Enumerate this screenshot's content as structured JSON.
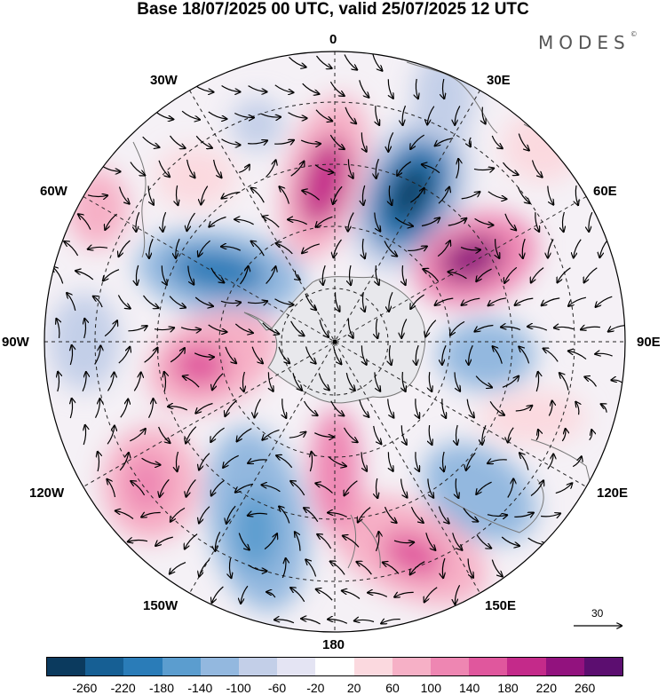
{
  "title": "Base 18/07/2025 00 UTC, valid 25/07/2025 12 UTC",
  "brand": "MODES",
  "brand_mark": "©",
  "map": {
    "projection": "south-polar-stereographic",
    "longitude_labels": {
      "top": "0",
      "top_right": "30E",
      "right_upper": "60E",
      "right": "90E",
      "right_lower": "120E",
      "bottom_right": "150E",
      "bottom": "180",
      "bottom_left": "150W",
      "left_lower": "120W",
      "left": "90W",
      "left_upper": "60W",
      "top_left": "30W"
    },
    "vector_reference": "30"
  },
  "colorbar": {
    "colors": [
      "#0b3a5e",
      "#165f94",
      "#2a7cb8",
      "#5b9dcf",
      "#93b8df",
      "#c3cfe8",
      "#e4e4f3",
      "#ffffff",
      "#fbd9df",
      "#f6b0c6",
      "#ee86b2",
      "#e0579d",
      "#c42a8a",
      "#92127e",
      "#5c0e70"
    ],
    "ticks": [
      "-260",
      "-220",
      "-180",
      "-140",
      "-100",
      "-60",
      "-20",
      "20",
      "60",
      "100",
      "140",
      "180",
      "220",
      "260"
    ]
  }
}
